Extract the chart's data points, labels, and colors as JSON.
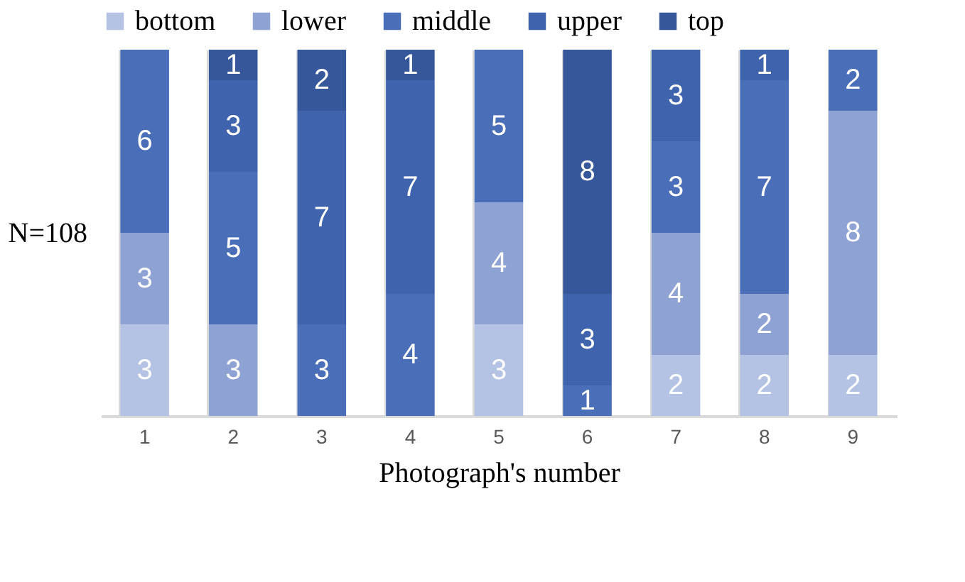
{
  "chart_data": {
    "type": "bar",
    "stacked": true,
    "xlabel": "Photograph's number",
    "ylabel": "N=108",
    "categories": [
      "1",
      "2",
      "3",
      "4",
      "5",
      "6",
      "7",
      "8",
      "9"
    ],
    "series": [
      {
        "name": "bottom",
        "color": "#b4c2e4",
        "values": [
          3,
          null,
          null,
          null,
          3,
          null,
          2,
          2,
          2
        ]
      },
      {
        "name": "lower",
        "color": "#8fa2d4",
        "values": [
          3,
          3,
          null,
          null,
          4,
          null,
          4,
          2,
          8
        ]
      },
      {
        "name": "middle",
        "color": "#4a6fb8",
        "values": [
          6,
          5,
          3,
          4,
          5,
          1,
          3,
          7,
          2
        ]
      },
      {
        "name": "upper",
        "color": "#3f63ad",
        "values": [
          null,
          3,
          7,
          7,
          null,
          3,
          3,
          1,
          null
        ]
      },
      {
        "name": "top",
        "color": "#36579a",
        "values": [
          null,
          1,
          2,
          1,
          null,
          8,
          null,
          null,
          null
        ]
      }
    ],
    "data_labels": true,
    "grid": "x",
    "legend": "top"
  }
}
